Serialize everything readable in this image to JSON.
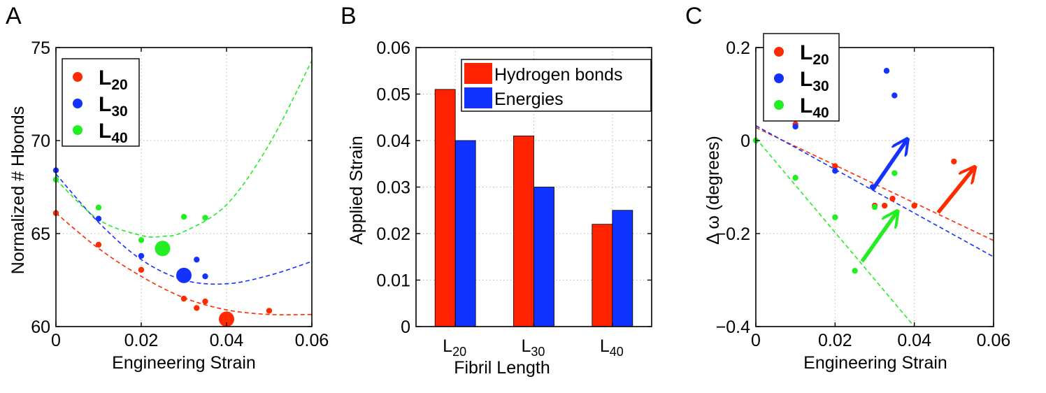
{
  "panels": [
    {
      "id": "A",
      "label": "A"
    },
    {
      "id": "B",
      "label": "B"
    },
    {
      "id": "C",
      "label": "C"
    }
  ],
  "colors": {
    "L20": "#ff2a00",
    "L30": "#1432ff",
    "L40": "#22ee22",
    "hbonds": "#ff2200",
    "energies": "#1133ff"
  },
  "chart_data": [
    {
      "panel": "A",
      "type": "scatter",
      "xlabel": "Engineering Strain",
      "ylabel": "Normalized # Hbonds",
      "xlim": [
        0,
        0.06
      ],
      "ylim": [
        60,
        75
      ],
      "xticks": [
        "0",
        "0.02",
        "0.04",
        "0.06"
      ],
      "yticks": [
        "60",
        "65",
        "70",
        "75"
      ],
      "grid": true,
      "legend": {
        "position": "top-left",
        "entries": [
          {
            "label": "L",
            "sub": "20",
            "color": "#ff2a00"
          },
          {
            "label": "L",
            "sub": "30",
            "color": "#1432ff"
          },
          {
            "label": "L",
            "sub": "40",
            "color": "#22ee22"
          }
        ]
      },
      "series": [
        {
          "name": "L20",
          "color": "#ff2a00",
          "points": [
            [
              0,
              66.1
            ],
            [
              0.01,
              64.4
            ],
            [
              0.02,
              63.05
            ],
            [
              0.03,
              61.5
            ],
            [
              0.033,
              61.0
            ],
            [
              0.035,
              61.35
            ],
            [
              0.05,
              60.85
            ]
          ],
          "highlight": [
            0.04,
            60.4
          ],
          "fit": [
            [
              0,
              66.1
            ],
            [
              0.01,
              64.2
            ],
            [
              0.02,
              62.7
            ],
            [
              0.03,
              61.55
            ],
            [
              0.04,
              60.9
            ],
            [
              0.05,
              60.65
            ],
            [
              0.06,
              60.65
            ]
          ]
        },
        {
          "name": "L30",
          "color": "#1432ff",
          "points": [
            [
              0,
              68.4
            ],
            [
              0.01,
              65.8
            ],
            [
              0.02,
              63.8
            ],
            [
              0.033,
              63.6
            ],
            [
              0.035,
              62.7
            ]
          ],
          "highlight": [
            0.03,
            62.75
          ],
          "fit": [
            [
              0,
              68.2
            ],
            [
              0.01,
              65.6
            ],
            [
              0.02,
              63.6
            ],
            [
              0.03,
              62.5
            ],
            [
              0.04,
              62.3
            ],
            [
              0.05,
              62.75
            ],
            [
              0.06,
              63.5
            ]
          ]
        },
        {
          "name": "L40",
          "color": "#22ee22",
          "points": [
            [
              0,
              67.9
            ],
            [
              0.01,
              66.4
            ],
            [
              0.02,
              64.65
            ],
            [
              0.03,
              65.9
            ],
            [
              0.035,
              65.85
            ]
          ],
          "highlight": [
            0.025,
            64.2
          ],
          "fit": [
            [
              0,
              67.9
            ],
            [
              0.01,
              65.75
            ],
            [
              0.02,
              64.9
            ],
            [
              0.025,
              64.85
            ],
            [
              0.03,
              65.1
            ],
            [
              0.04,
              66.55
            ],
            [
              0.05,
              69.8
            ],
            [
              0.06,
              74.3
            ]
          ]
        }
      ]
    },
    {
      "panel": "B",
      "type": "bar",
      "xlabel": "Fibril Length",
      "ylabel": "Applied Strain",
      "ylim": [
        0,
        0.06
      ],
      "yticks": [
        "0",
        "0.01",
        "0.02",
        "0.03",
        "0.04",
        "0.05",
        "0.06"
      ],
      "grid": true,
      "categories": [
        {
          "label": "L",
          "sub": "20"
        },
        {
          "label": "L",
          "sub": "30"
        },
        {
          "label": "L",
          "sub": "40"
        }
      ],
      "legend": {
        "position": "top-right"
      },
      "series": [
        {
          "name": "Hydrogen bonds",
          "color": "#ff2200",
          "values": [
            0.051,
            0.041,
            0.022
          ]
        },
        {
          "name": "Energies",
          "color": "#1133ff",
          "values": [
            0.04,
            0.03,
            0.025
          ]
        }
      ]
    },
    {
      "panel": "C",
      "type": "scatter",
      "xlabel": "Engineering Strain",
      "ylabel": "Δ ω (degrees)",
      "xlim": [
        0,
        0.06
      ],
      "ylim": [
        -0.4,
        0.2
      ],
      "xticks": [
        "0",
        "0.02",
        "0.04",
        "0.06"
      ],
      "yticks": [
        "−0.4",
        "−0.2",
        "0",
        "0.2"
      ],
      "grid": true,
      "legend": {
        "position": "top-left",
        "entries": [
          {
            "label": "L",
            "sub": "20",
            "color": "#ff2a00"
          },
          {
            "label": "L",
            "sub": "30",
            "color": "#1432ff"
          },
          {
            "label": "L",
            "sub": "40",
            "color": "#22ee22"
          }
        ]
      },
      "series": [
        {
          "name": "L20",
          "color": "#ff2a00",
          "points": [
            [
              0.01,
              0.035
            ],
            [
              0.02,
              -0.055
            ],
            [
              0.03,
              -0.14
            ],
            [
              0.0325,
              -0.14
            ],
            [
              0.0345,
              -0.125
            ],
            [
              0.04,
              -0.14
            ],
            [
              0.05,
              -0.045
            ]
          ],
          "fit": [
            [
              0,
              0.028
            ],
            [
              0.06,
              -0.215
            ]
          ],
          "arrow": [
            [
              0.046,
              -0.155
            ],
            [
              0.055,
              -0.06
            ]
          ]
        },
        {
          "name": "L30",
          "color": "#1432ff",
          "points": [
            [
              0.01,
              0.03
            ],
            [
              0.02,
              -0.065
            ],
            [
              0.0295,
              -0.1
            ],
            [
              0.033,
              0.15
            ],
            [
              0.035,
              0.097
            ]
          ],
          "fit": [
            [
              0,
              0.032
            ],
            [
              0.06,
              -0.25
            ]
          ],
          "arrow": [
            [
              0.0295,
              -0.105
            ],
            [
              0.038,
              0.0
            ]
          ]
        },
        {
          "name": "L40",
          "color": "#22ee22",
          "points": [
            [
              0,
              0.0
            ],
            [
              0.01,
              -0.08
            ],
            [
              0.02,
              -0.165
            ],
            [
              0.025,
              -0.28
            ],
            [
              0.03,
              -0.143
            ],
            [
              0.035,
              -0.07
            ]
          ],
          "fit": [
            [
              0,
              0.005
            ],
            [
              0.04,
              -0.4
            ]
          ],
          "arrow": [
            [
              0.0268,
              -0.26
            ],
            [
              0.0355,
              -0.155
            ]
          ]
        }
      ]
    }
  ]
}
